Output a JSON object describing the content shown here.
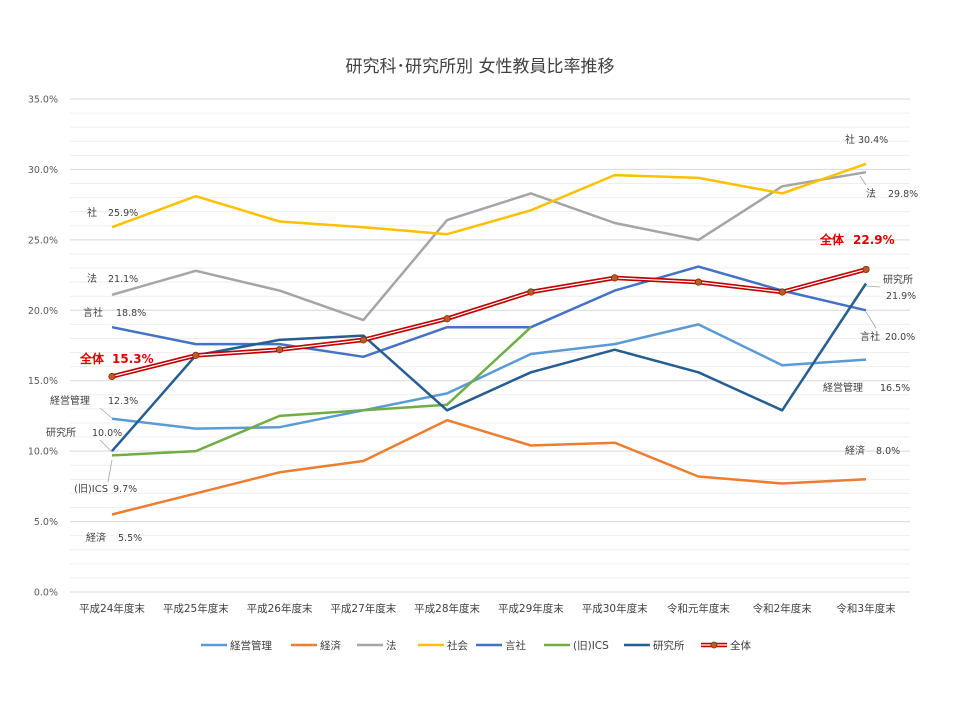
{
  "chart_data": {
    "type": "line",
    "title": "研究科･研究所別 女性教員比率推移",
    "xlabel": "",
    "ylabel": "",
    "ylim": [
      0,
      35
    ],
    "y_ticks": [
      "0.0%",
      "5.0%",
      "10.0%",
      "15.0%",
      "20.0%",
      "25.0%",
      "30.0%",
      "35.0%"
    ],
    "grid": true,
    "legend_position": "bottom",
    "categories": [
      "平成24年度末",
      "平成25年度末",
      "平成26年度末",
      "平成27年度末",
      "平成28年度末",
      "平成29年度末",
      "平成30年度末",
      "令和元年度末",
      "令和2年度末",
      "令和3年度末"
    ],
    "series": [
      {
        "name": "経営管理",
        "color": "#5B9BD5",
        "values": [
          12.3,
          11.6,
          11.7,
          12.9,
          14.1,
          16.9,
          17.6,
          19.0,
          16.1,
          16.5
        ]
      },
      {
        "name": "経済",
        "color": "#ED7D31",
        "values": [
          5.5,
          7.0,
          8.5,
          9.3,
          12.2,
          10.4,
          10.6,
          8.2,
          7.7,
          8.0
        ]
      },
      {
        "name": "法",
        "color": "#A5A5A5",
        "values": [
          21.1,
          22.8,
          21.4,
          19.3,
          26.4,
          28.3,
          26.2,
          25.0,
          28.8,
          29.8
        ]
      },
      {
        "name": "社会",
        "color": "#FFC000",
        "values": [
          25.9,
          28.1,
          26.3,
          25.9,
          25.4,
          27.1,
          29.6,
          29.4,
          28.3,
          30.4
        ]
      },
      {
        "name": "言社",
        "color": "#4472C4",
        "values": [
          18.8,
          17.6,
          17.6,
          16.7,
          18.8,
          18.8,
          21.4,
          23.1,
          21.4,
          20.0
        ]
      },
      {
        "name": "(旧)ICS",
        "color": "#70AD47",
        "values": [
          9.7,
          10.0,
          12.5,
          12.9,
          13.3,
          18.8,
          null,
          null,
          null,
          null
        ]
      },
      {
        "name": "研究所",
        "color": "#255E91",
        "values": [
          10.0,
          16.8,
          17.9,
          18.2,
          12.9,
          15.6,
          17.2,
          15.6,
          12.9,
          21.9
        ]
      },
      {
        "name": "全体",
        "color": "#C00000",
        "values": [
          15.3,
          16.8,
          17.2,
          17.9,
          19.4,
          21.3,
          22.3,
          22.0,
          21.3,
          22.9
        ]
      }
    ],
    "annotations": [
      {
        "series": "社会",
        "index": 0,
        "label": "社",
        "value": "25.9%"
      },
      {
        "series": "法",
        "index": 0,
        "label": "法",
        "value": "21.1%"
      },
      {
        "series": "言社",
        "index": 0,
        "label": "言社",
        "value": "18.8%"
      },
      {
        "series": "全体",
        "index": 0,
        "label": "全体",
        "value": "15.3%"
      },
      {
        "series": "経営管理",
        "index": 0,
        "label": "経営管理",
        "value": "12.3%"
      },
      {
        "series": "研究所",
        "index": 0,
        "label": "研究所",
        "value": "10.0%"
      },
      {
        "series": "(旧)ICS",
        "index": 0,
        "label": "(旧)ICS",
        "value": "9.7%"
      },
      {
        "series": "経済",
        "index": 0,
        "label": "経済",
        "value": "5.5%"
      },
      {
        "series": "社会",
        "index": 9,
        "label": "社",
        "value": "30.4%"
      },
      {
        "series": "法",
        "index": 9,
        "label": "法",
        "value": "29.8%"
      },
      {
        "series": "全体",
        "index": 9,
        "label": "全体",
        "value": "22.9%"
      },
      {
        "series": "研究所",
        "index": 9,
        "label": "研究所",
        "value": "21.9%"
      },
      {
        "series": "言社",
        "index": 9,
        "label": "言社",
        "value": "20.0%"
      },
      {
        "series": "経営管理",
        "index": 9,
        "label": "経営管理",
        "value": "16.5%"
      },
      {
        "series": "経済",
        "index": 9,
        "label": "経済",
        "value": "8.0%"
      }
    ]
  }
}
